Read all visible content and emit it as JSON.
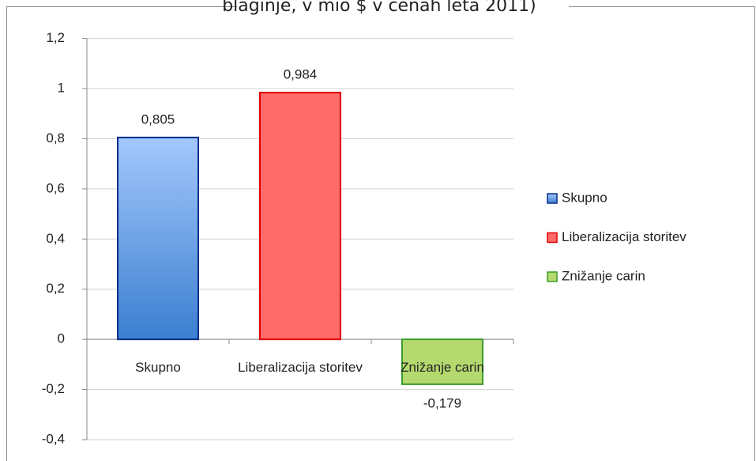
{
  "chart_data": {
    "type": "bar",
    "title": "blaginje, v mio $ v cenah leta 2011)",
    "categories": [
      "Skupno",
      "Liberalizacija storitev",
      "Znižanje carin"
    ],
    "values": [
      0.805,
      0.984,
      -0.179
    ],
    "value_labels": [
      "0,805",
      "0,984",
      "-0,179"
    ],
    "colors": [
      "#6fa3ea",
      "#ff6b6b",
      "#b5d96e"
    ],
    "ylim": [
      -0.4,
      1.2
    ],
    "yticks": [
      {
        "value": -0.4,
        "label": "-0,4"
      },
      {
        "value": -0.2,
        "label": "-0,2"
      },
      0,
      {
        "value": 0.2,
        "label": "0,2"
      },
      {
        "value": 0.4,
        "label": "0,4"
      },
      {
        "value": 0.6,
        "label": "0,6"
      },
      {
        "value": 0.8,
        "label": "0,8"
      },
      1,
      {
        "value": 1.2,
        "label": "1,2"
      }
    ],
    "grid": true,
    "legend": "right"
  }
}
